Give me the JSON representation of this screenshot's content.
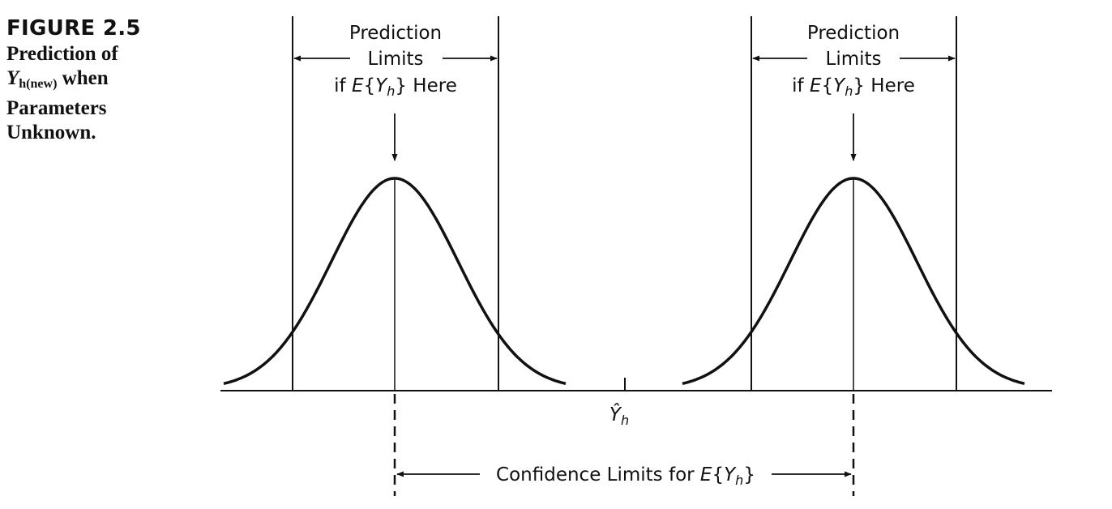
{
  "figure": {
    "number": "FIGURE 2.5",
    "title_line1": "Prediction of",
    "title_y": "Y",
    "title_y_sub": "h(new)",
    "title_line2_rest": " when",
    "title_line3": "Parameters",
    "title_line4": "Unknown."
  },
  "diagram": {
    "left_group": {
      "line1": "Prediction",
      "line2": "Limits",
      "line3_prefix": "if ",
      "line3_E": "E",
      "line3_brace_open": "{",
      "line3_Y": "Y",
      "line3_sub": "h",
      "line3_brace_close": "}",
      "line3_suffix": " Here"
    },
    "right_group": {
      "line1": "Prediction",
      "line2": "Limits",
      "line3_prefix": "if ",
      "line3_E": "E",
      "line3_brace_open": "{",
      "line3_Y": "Y",
      "line3_sub": "h",
      "line3_brace_close": "}",
      "line3_suffix": " Here"
    },
    "center_label": {
      "Y": "Ŷ",
      "sub": "h"
    },
    "confidence": {
      "text": "Confidence Limits for ",
      "E": "E",
      "brace_open": "{",
      "Y": "Y",
      "sub": "h",
      "brace_close": "}"
    }
  }
}
